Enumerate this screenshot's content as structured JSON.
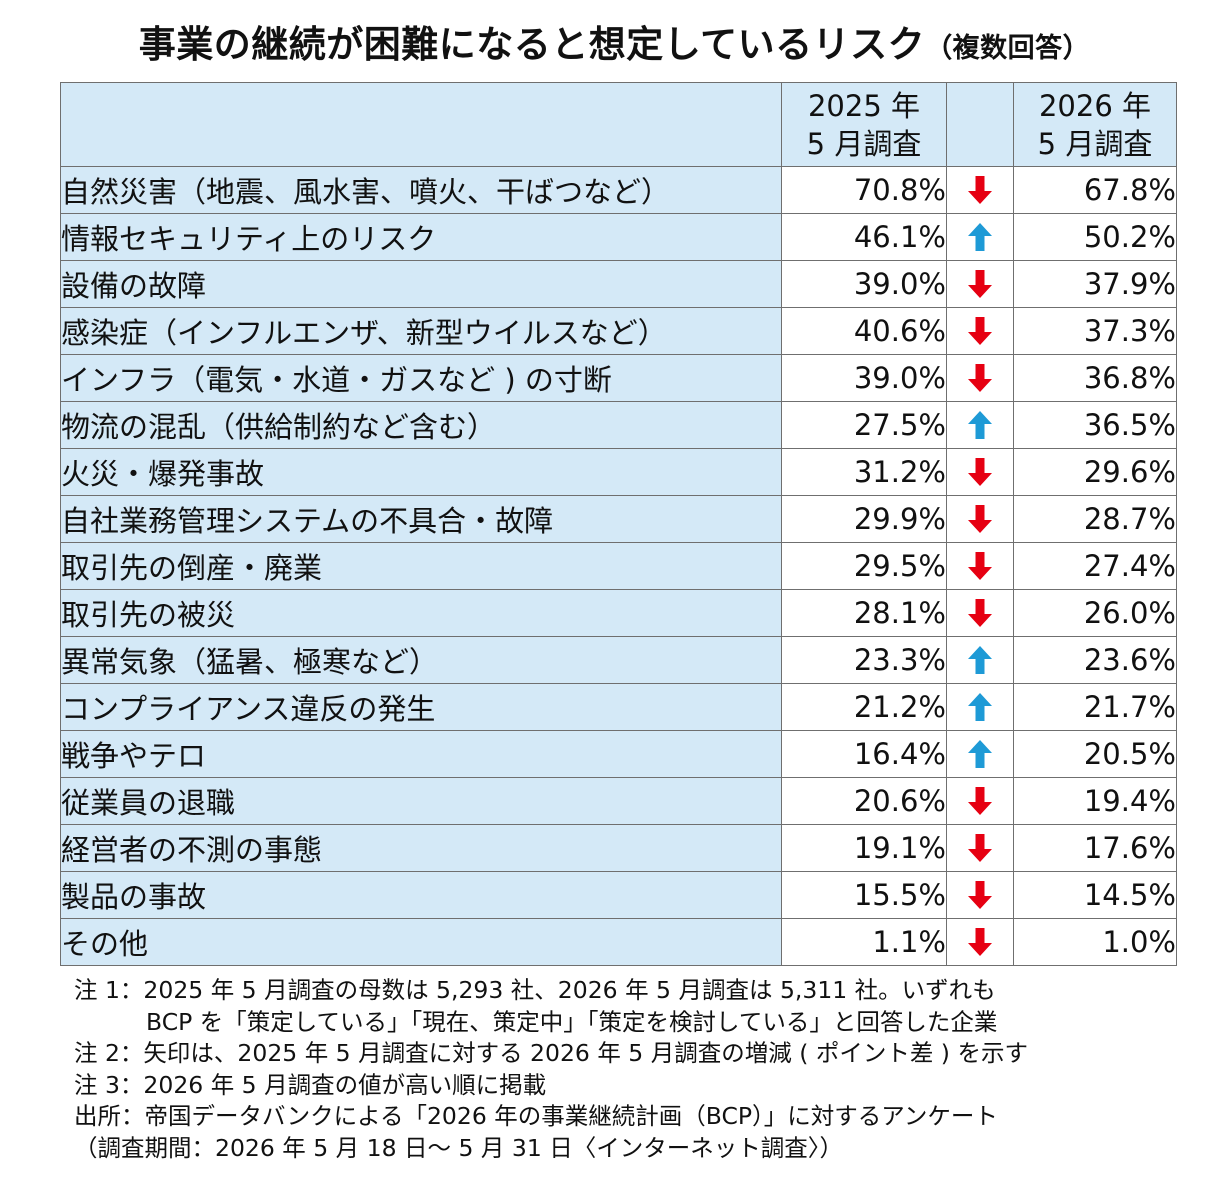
{
  "title": "事業の継続が困難になると想定しているリスク",
  "title_sub": "（複数回答）",
  "chart_data": {
    "type": "table",
    "columns": [
      "2025 年\n5 月調査",
      "2026 年\n5 月調査"
    ],
    "col1_line1": "2025 年",
    "col1_line2": "5 月調査",
    "col2_line1": "2026 年",
    "col2_line2": "5 月調査",
    "rows": [
      {
        "label": "自然災害（地震、風水害、噴火、干ばつなど）",
        "v2025": "70.8%",
        "v2026": "67.8%",
        "dir": "down"
      },
      {
        "label": "情報セキュリティ上のリスク",
        "v2025": "46.1%",
        "v2026": "50.2%",
        "dir": "up"
      },
      {
        "label": "設備の故障",
        "v2025": "39.0%",
        "v2026": "37.9%",
        "dir": "down"
      },
      {
        "label": "感染症（インフルエンザ、新型ウイルスなど）",
        "v2025": "40.6%",
        "v2026": "37.3%",
        "dir": "down"
      },
      {
        "label": "インフラ（電気・水道・ガスなど ) の寸断",
        "v2025": "39.0%",
        "v2026": "36.8%",
        "dir": "down"
      },
      {
        "label": "物流の混乱（供給制約など含む）",
        "v2025": "27.5%",
        "v2026": "36.5%",
        "dir": "up"
      },
      {
        "label": "火災・爆発事故",
        "v2025": "31.2%",
        "v2026": "29.6%",
        "dir": "down"
      },
      {
        "label": "自社業務管理システムの不具合・故障",
        "v2025": "29.9%",
        "v2026": "28.7%",
        "dir": "down"
      },
      {
        "label": "取引先の倒産・廃業",
        "v2025": "29.5%",
        "v2026": "27.4%",
        "dir": "down"
      },
      {
        "label": "取引先の被災",
        "v2025": "28.1%",
        "v2026": "26.0%",
        "dir": "down"
      },
      {
        "label": "異常気象（猛暑、極寒など）",
        "v2025": "23.3%",
        "v2026": "23.6%",
        "dir": "up"
      },
      {
        "label": "コンプライアンス違反の発生",
        "v2025": "21.2%",
        "v2026": "21.7%",
        "dir": "up"
      },
      {
        "label": "戦争やテロ",
        "v2025": "16.4%",
        "v2026": "20.5%",
        "dir": "up"
      },
      {
        "label": "従業員の退職",
        "v2025": "20.6%",
        "v2026": "19.4%",
        "dir": "down"
      },
      {
        "label": "経営者の不測の事態",
        "v2025": "19.1%",
        "v2026": "17.6%",
        "dir": "down"
      },
      {
        "label": "製品の事故",
        "v2025": "15.5%",
        "v2026": "14.5%",
        "dir": "down"
      },
      {
        "label": "その他",
        "v2025": "1.1%",
        "v2026": "1.0%",
        "dir": "down"
      }
    ]
  },
  "colors": {
    "header_bg": "#d4e9f7",
    "arrow_down": "#e60012",
    "arrow_up": "#1e9ad6"
  },
  "notes": [
    "注 1：2025 年 5 月調査の母数は 5,293 社、2026 年 5 月調査は 5,311 社。いずれも",
    "BCP を「策定している」「現在、策定中」「策定を検討している」と回答した企業",
    "注 2：矢印は、2025 年 5 月調査に対する 2026 年 5 月調査の増減 ( ポイント差 ) を示す",
    "注 3：2026 年 5 月調査の値が高い順に掲載",
    "出所：帝国データバンクによる「2026 年の事業継続計画（BCP）」に対するアンケート",
    "（調査期間：2026 年 5 月 18 日～ 5 月 31 日〈インターネット調査〉）"
  ]
}
